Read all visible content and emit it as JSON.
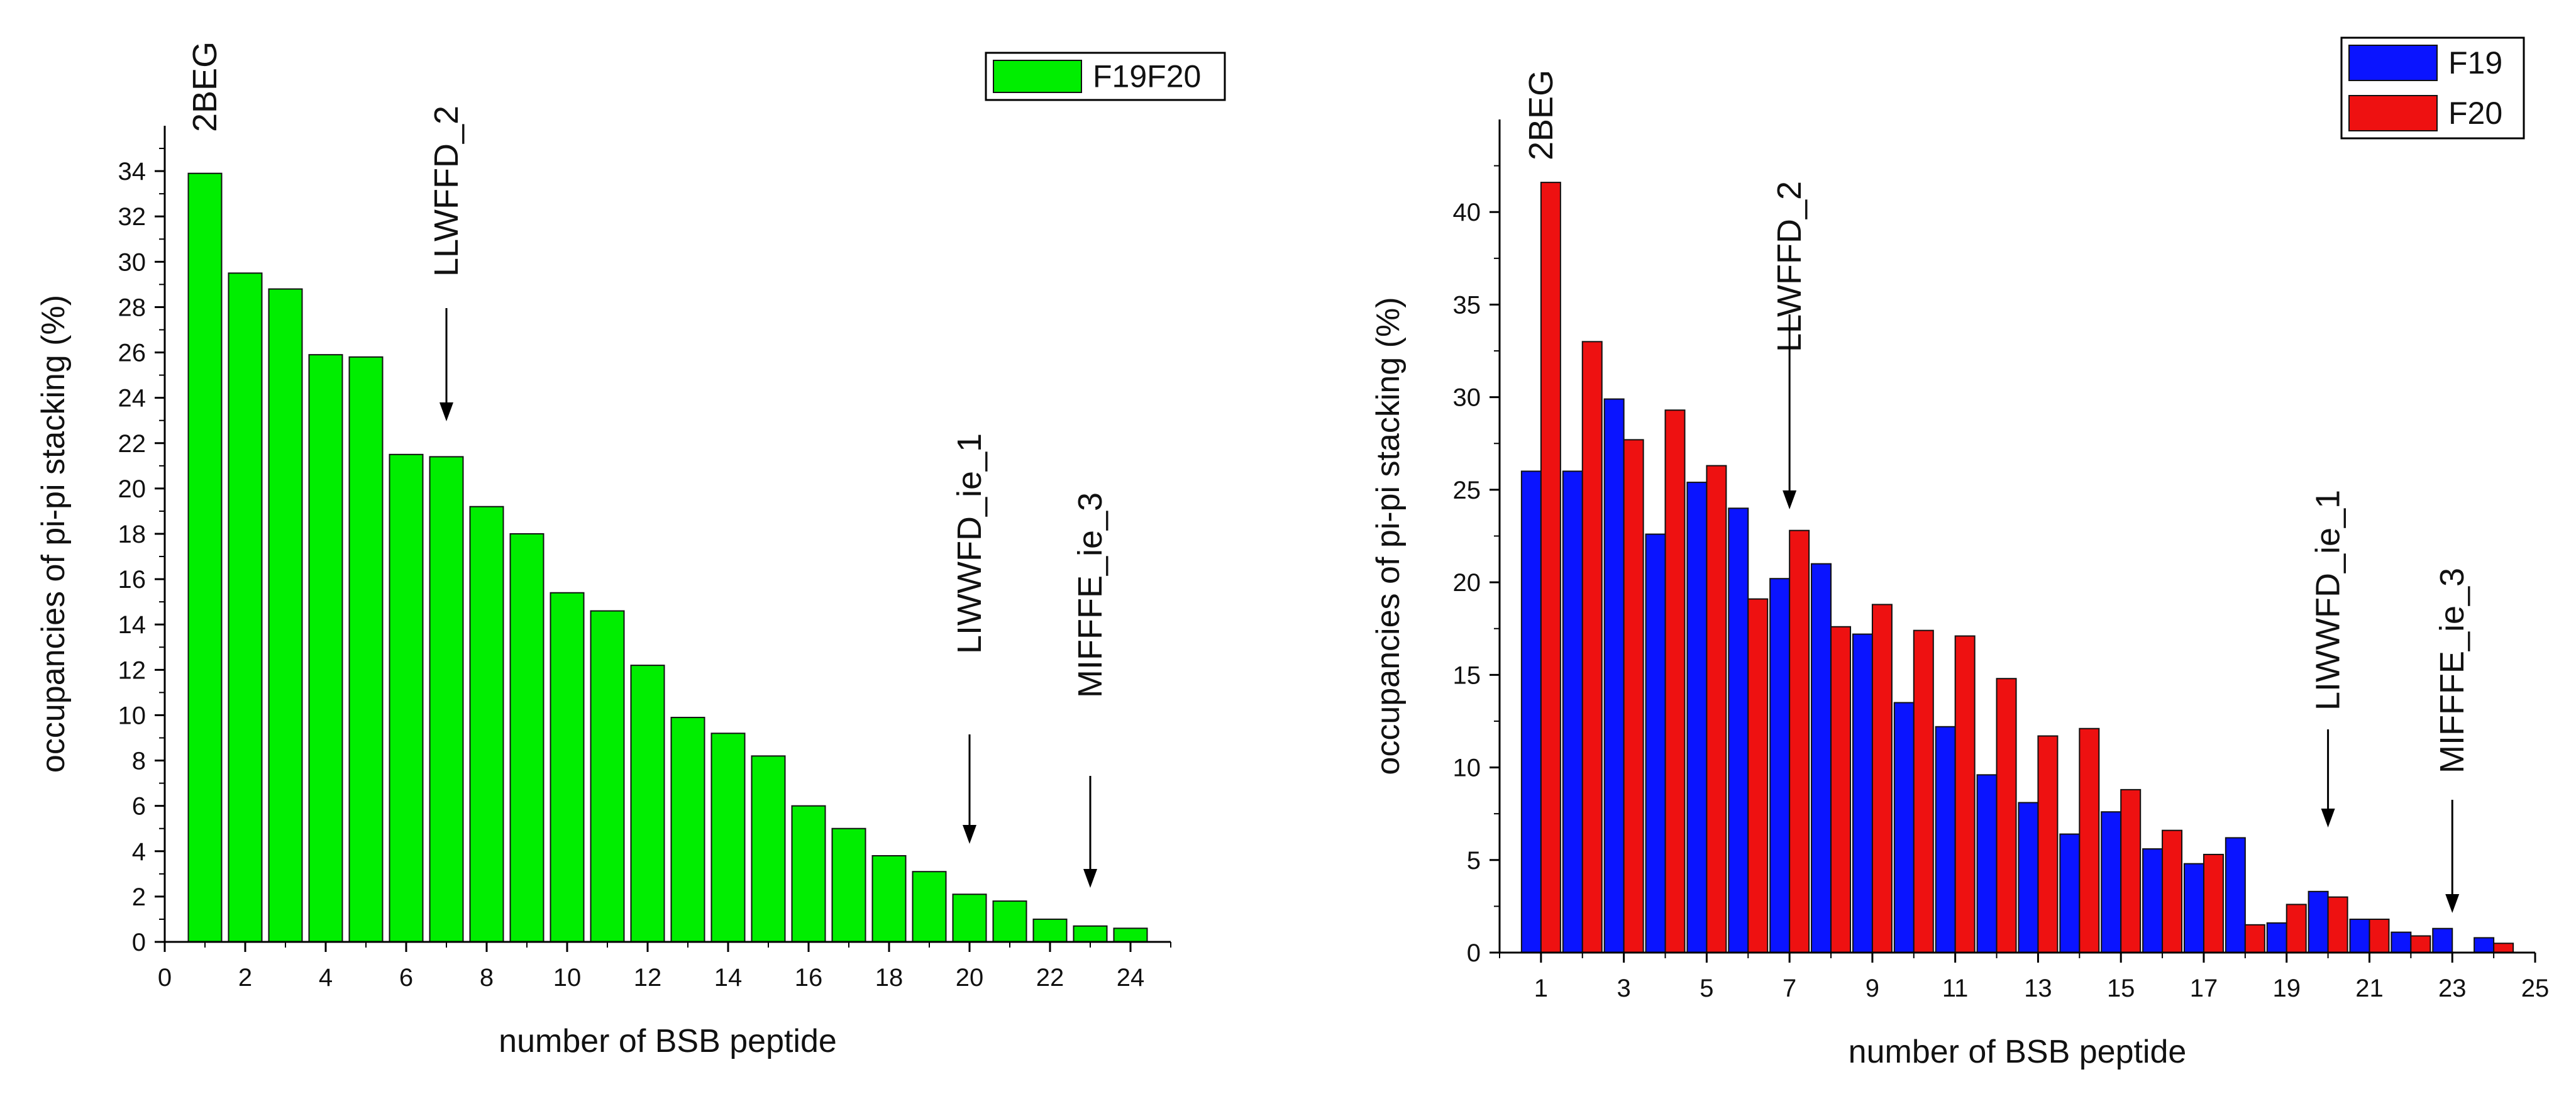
{
  "chart_data": [
    {
      "type": "bar",
      "xlabel": "number of BSB peptide",
      "ylabel": "occupancies of pi-pi stacking (%)",
      "xlim": [
        0,
        25
      ],
      "ylim": [
        0,
        36
      ],
      "x_ticks": [
        0,
        2,
        4,
        6,
        8,
        10,
        12,
        14,
        16,
        18,
        20,
        22,
        24
      ],
      "y_ticks": [
        0,
        2,
        4,
        6,
        8,
        10,
        12,
        14,
        16,
        18,
        20,
        22,
        24,
        26,
        28,
        30,
        32,
        34
      ],
      "grid": false,
      "legend_position": "top-right",
      "x": [
        1,
        2,
        3,
        4,
        5,
        6,
        7,
        8,
        9,
        10,
        11,
        12,
        13,
        14,
        15,
        16,
        17,
        18,
        19,
        20,
        21,
        22,
        23,
        24
      ],
      "series": [
        {
          "name": "F19F20",
          "color": "#00ee00",
          "values": [
            33.9,
            29.5,
            28.8,
            25.9,
            25.8,
            21.5,
            21.4,
            19.2,
            18.0,
            15.4,
            14.6,
            12.2,
            9.9,
            9.2,
            8.2,
            6.0,
            5.0,
            3.8,
            3.1,
            2.1,
            1.8,
            1.0,
            0.7,
            0.6
          ]
        }
      ],
      "annotations": [
        {
          "text": "2BEG",
          "x": 1
        },
        {
          "text": "LLWFFD_2",
          "x": 7,
          "arrow": true
        },
        {
          "text": "LIWWFD_ie_1",
          "x": 20,
          "arrow": true
        },
        {
          "text": "MIFFFE_ie_3",
          "x": 23,
          "arrow": true
        }
      ]
    },
    {
      "type": "bar",
      "xlabel": "number of BSB peptide",
      "ylabel": "occupancies of pi-pi stacking (%)",
      "xlim": [
        0,
        25
      ],
      "ylim": [
        0,
        45
      ],
      "x_ticks": [
        1,
        3,
        5,
        7,
        9,
        11,
        13,
        15,
        17,
        19,
        21,
        23,
        25
      ],
      "y_ticks": [
        0,
        5,
        10,
        15,
        20,
        25,
        30,
        35,
        40
      ],
      "grid": false,
      "legend_position": "top-right",
      "x": [
        1,
        2,
        3,
        4,
        5,
        6,
        7,
        8,
        9,
        10,
        11,
        12,
        13,
        14,
        15,
        16,
        17,
        18,
        19,
        20,
        21,
        22,
        23,
        24
      ],
      "series": [
        {
          "name": "F19",
          "color": "#0a14ff",
          "values": [
            26.0,
            26.0,
            29.9,
            22.6,
            25.4,
            24.0,
            20.2,
            21.0,
            17.2,
            13.5,
            12.2,
            9.6,
            8.1,
            6.4,
            7.6,
            5.6,
            4.8,
            6.2,
            1.6,
            3.3,
            1.8,
            1.1,
            1.3,
            0.8
          ]
        },
        {
          "name": "F20",
          "color": "#ee1111",
          "values": [
            41.6,
            33.0,
            27.7,
            29.3,
            26.3,
            19.1,
            22.8,
            17.6,
            18.8,
            17.4,
            17.1,
            14.8,
            11.7,
            12.1,
            8.8,
            6.6,
            5.3,
            1.5,
            2.6,
            3.0,
            1.8,
            0.9,
            0.0,
            0.5
          ]
        }
      ],
      "annotations": [
        {
          "text": "2BEG",
          "x": 1
        },
        {
          "text": "LLWFFD_2",
          "x": 7,
          "arrow": true
        },
        {
          "text": "LIWWFD_ie_1",
          "x": 20,
          "arrow": true
        },
        {
          "text": "MIFFFE_ie_3",
          "x": 23,
          "arrow": true
        }
      ]
    }
  ]
}
